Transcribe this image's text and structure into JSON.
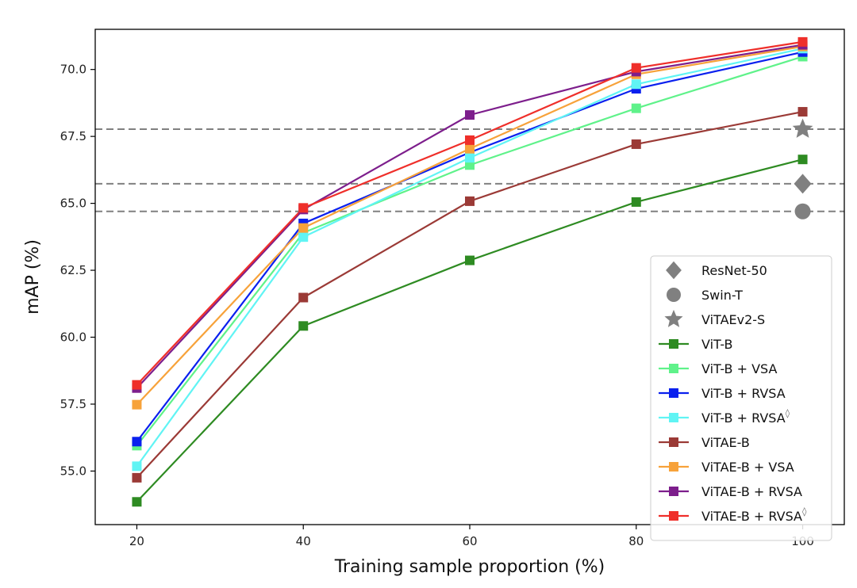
{
  "chart_data": {
    "type": "line",
    "title": "",
    "xlabel": "Training sample proportion (%)",
    "ylabel": "mAP (%)",
    "xlim": [
      15,
      105
    ],
    "ylim": [
      53.0,
      71.5
    ],
    "x": [
      20,
      40,
      60,
      80,
      100
    ],
    "xticks": [
      "20",
      "40",
      "60",
      "80",
      "100"
    ],
    "yticks": [
      "55.0",
      "57.5",
      "60.0",
      "62.5",
      "65.0",
      "67.5",
      "70.0"
    ],
    "ytick_values": [
      55.0,
      57.5,
      60.0,
      62.5,
      65.0,
      67.5,
      70.0
    ],
    "grid": false,
    "legend_position": "lower-right",
    "reference_lines": [
      {
        "name": "ViTAEv2-S",
        "value": 67.77,
        "marker": "star",
        "color": "#808080"
      },
      {
        "name": "ResNet-50",
        "value": 65.73,
        "marker": "diamond",
        "color": "#808080"
      },
      {
        "name": "Swin-T",
        "value": 64.7,
        "marker": "circle",
        "color": "#808080"
      }
    ],
    "series": [
      {
        "name": "ViT-B",
        "color": "#2e8b22",
        "values": [
          53.85,
          60.42,
          62.87,
          65.05,
          66.64
        ]
      },
      {
        "name": "ViT-B + VSA",
        "color": "#5ff28a",
        "values": [
          55.95,
          63.9,
          66.43,
          68.55,
          70.48
        ]
      },
      {
        "name": "ViT-B + RVSA",
        "color": "#0a20ee",
        "values": [
          56.1,
          64.25,
          66.9,
          69.28,
          70.65
        ]
      },
      {
        "name": "ViT-B + RVSA",
        "superscript": "◊",
        "color": "#60f4f4",
        "values": [
          55.18,
          63.74,
          66.7,
          69.45,
          70.78
        ]
      },
      {
        "name": "ViTAE-B",
        "color": "#9b3a36",
        "values": [
          54.75,
          61.48,
          65.08,
          67.21,
          68.42
        ]
      },
      {
        "name": "ViTAE-B + VSA",
        "color": "#f7a23a",
        "values": [
          57.48,
          64.08,
          67.04,
          69.82,
          70.86
        ]
      },
      {
        "name": "ViTAE-B + RVSA",
        "color": "#7d1e8c",
        "values": [
          58.1,
          64.77,
          68.3,
          69.92,
          70.92
        ]
      },
      {
        "name": "ViTAE-B + RVSA",
        "superscript": "◊",
        "color": "#ef2f2a",
        "values": [
          58.22,
          64.83,
          67.36,
          70.06,
          71.03
        ]
      }
    ]
  }
}
